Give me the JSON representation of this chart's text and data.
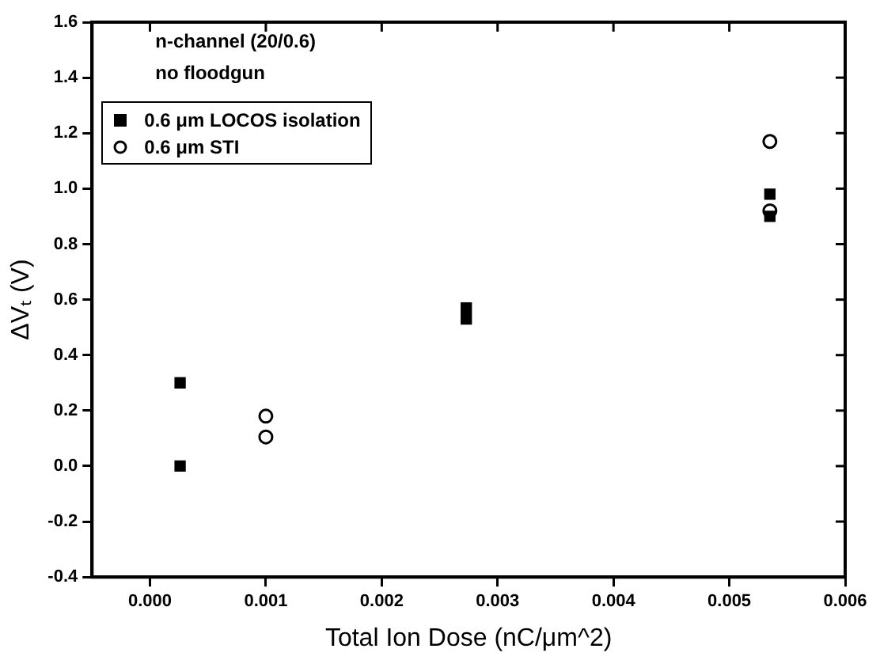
{
  "chart_data": {
    "type": "scatter",
    "xlabel": "Total Ion Dose (nC/μm^2)",
    "ylabel": "ΔVₜ (V)",
    "annotations": [
      "n-channel (20/0.6)",
      "no floodgun"
    ],
    "xlim": [
      -0.0005,
      0.006
    ],
    "xticks": [
      {
        "value": 0,
        "label": "0.000"
      },
      {
        "value": 0.001,
        "label": "0.001"
      },
      {
        "value": 0.002,
        "label": "0.002"
      },
      {
        "value": 0.003,
        "label": "0.003"
      },
      {
        "value": 0.004,
        "label": "0.004"
      },
      {
        "value": 0.005,
        "label": "0.005"
      },
      {
        "value": 0.006,
        "label": "0.006"
      }
    ],
    "ylim": [
      -0.4,
      1.6
    ],
    "yticks": [
      {
        "value": -0.4,
        "label": "-0.4"
      },
      {
        "value": -0.2,
        "label": "-0.2"
      },
      {
        "value": 0,
        "label": "0.0"
      },
      {
        "value": 0.2,
        "label": "0.2"
      },
      {
        "value": 0.4,
        "label": "0.4"
      },
      {
        "value": 0.6,
        "label": "0.6"
      },
      {
        "value": 0.8,
        "label": "0.8"
      },
      {
        "value": 1,
        "label": "1.0"
      },
      {
        "value": 1.2,
        "label": "1.2"
      },
      {
        "value": 1.4,
        "label": "1.4"
      },
      {
        "value": 1.6,
        "label": "1.6"
      }
    ],
    "grid": false,
    "legend": "top left",
    "series": [
      {
        "name": "0.6 μm LOCOS isolation",
        "color": "#000000",
        "marker": "square",
        "x": [
          0.00026,
          0.00026,
          0.00273,
          0.00273,
          0.00535,
          0.00535
        ],
        "values": [
          0.3,
          0.0,
          0.57,
          0.53,
          0.98,
          0.9
        ]
      },
      {
        "name": "0.6 μm STI",
        "color": "#000000",
        "marker": "circle",
        "x": [
          0.001,
          0.001,
          0.00535,
          0.00535
        ],
        "values": [
          0.18,
          0.105,
          1.17,
          0.92
        ]
      }
    ]
  }
}
